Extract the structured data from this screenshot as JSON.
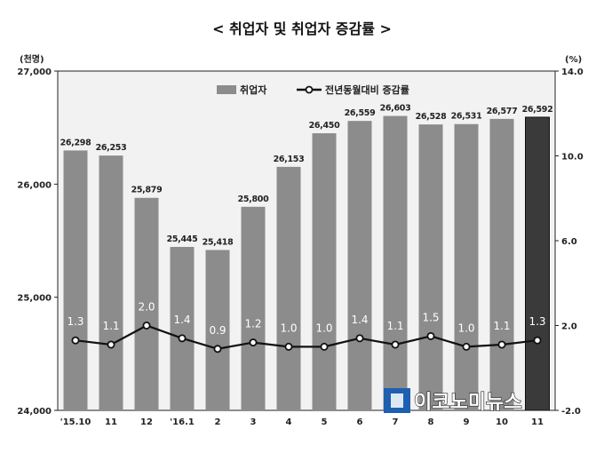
{
  "chart_data": {
    "type": "bar",
    "title": "< 취업자 및 취업자 증감률 >",
    "left_unit": "(천명)",
    "right_unit": "(%)",
    "categories": [
      "'15.10",
      "11",
      "12",
      "'16.1",
      "2",
      "3",
      "4",
      "5",
      "6",
      "7",
      "8",
      "9",
      "10",
      "11"
    ],
    "y_left": {
      "min": 24000,
      "max": 27000,
      "ticks": [
        24000,
        25000,
        26000,
        27000
      ],
      "tick_labels": [
        "24,000",
        "25,000",
        "26,000",
        "27,000"
      ]
    },
    "y_right": {
      "min": -2.0,
      "max": 14.0,
      "ticks": [
        -2.0,
        2.0,
        6.0,
        10.0,
        14.0
      ],
      "tick_labels": [
        "-2.0",
        "2.0",
        "6.0",
        "10.0",
        "14.0"
      ]
    },
    "series": [
      {
        "name": "취업자",
        "type": "bar",
        "axis": "left",
        "values": [
          26298,
          26253,
          25879,
          25445,
          25418,
          25800,
          26153,
          26450,
          26559,
          26603,
          26528,
          26531,
          26577,
          26592
        ],
        "labels": [
          "26,298",
          "26,253",
          "25,879",
          "25,445",
          "25,418",
          "25,800",
          "26,153",
          "26,450",
          "26,559",
          "26,603",
          "26,528",
          "26,531",
          "26,577",
          "26,592"
        ]
      },
      {
        "name": "전년동월대비 증감률",
        "type": "line",
        "axis": "right",
        "values": [
          1.3,
          1.1,
          2.0,
          1.4,
          0.9,
          1.2,
          1.0,
          1.0,
          1.4,
          1.1,
          1.5,
          1.0,
          1.1,
          1.3
        ],
        "labels": [
          "1.3",
          "1.1",
          "2.0",
          "1.4",
          "0.9",
          "1.2",
          "1.0",
          "1.0",
          "1.4",
          "1.1",
          "1.5",
          "1.0",
          "1.1",
          "1.3"
        ]
      }
    ],
    "highlight_index": 13,
    "grid": false,
    "legend_position": "top-right",
    "colors": {
      "bar": "#8c8c8c",
      "bar_highlight": "#3a3a3a",
      "plot_bg": "#f2f2f2",
      "line": "#111111"
    }
  },
  "watermark": {
    "text": "이코노미뉴스",
    "icon_text": "economy"
  }
}
